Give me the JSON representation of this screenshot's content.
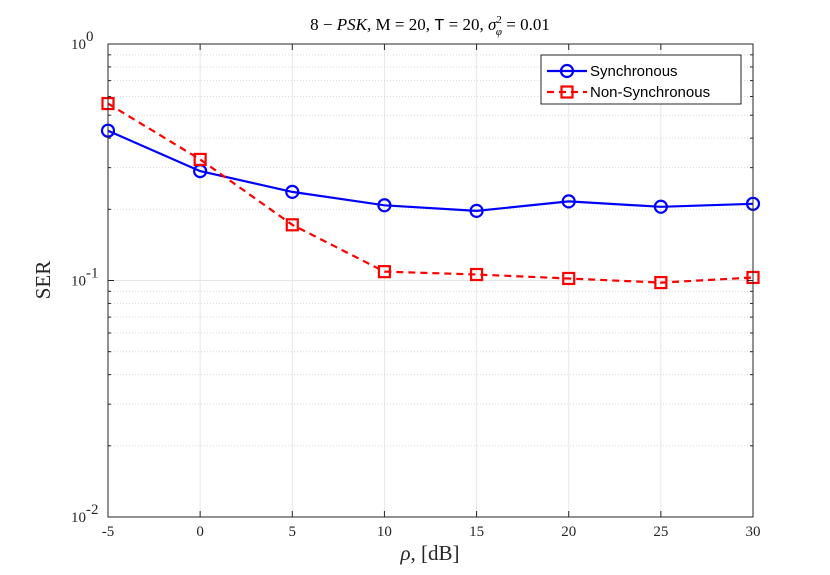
{
  "chart_data": {
    "type": "line",
    "title": "8 − PSK, M = 20, T = 20, σ²_φ = 0.01",
    "title_parts": {
      "prefix": "8 − ",
      "psk": "PSK",
      "m_label": ", M = 20, ",
      "t_label": "T",
      "t_rest": " = 20, ",
      "sigma": "σ",
      "sigma_sup": "2",
      "sigma_sub": "φ",
      "sigma_rest": " = 0.01"
    },
    "xlabel": "ρ, [dB]",
    "xlabel_parts": {
      "rho": "ρ",
      "rest": ", [dB]"
    },
    "ylabel": "SER",
    "xlim": [
      -5,
      30
    ],
    "ylim": [
      0.01,
      1
    ],
    "yscale": "log",
    "grid": true,
    "x_ticks": [
      -5,
      0,
      5,
      10,
      15,
      20,
      25,
      30
    ],
    "x_tick_labels": [
      "-5",
      "0",
      "5",
      "10",
      "15",
      "20",
      "25",
      "30"
    ],
    "y_ticks": [
      {
        "value": 1,
        "base": "10",
        "exp": "0"
      },
      {
        "value": 0.1,
        "base": "10",
        "exp": "-1"
      },
      {
        "value": 0.01,
        "base": "10",
        "exp": "-2"
      }
    ],
    "x": [
      -5,
      0,
      5,
      10,
      15,
      20,
      25,
      30
    ],
    "series": [
      {
        "name": "Synchronous",
        "color": "#0000ff",
        "marker": "circle",
        "dash": "solid",
        "values": [
          0.43,
          0.29,
          0.237,
          0.208,
          0.197,
          0.216,
          0.205,
          0.211
        ]
      },
      {
        "name": "Non-Synchronous",
        "color": "#ff0000",
        "marker": "square",
        "dash": "dashed",
        "values": [
          0.56,
          0.325,
          0.172,
          0.109,
          0.106,
          0.102,
          0.098,
          0.103
        ]
      }
    ],
    "legend_position": "top-right"
  }
}
